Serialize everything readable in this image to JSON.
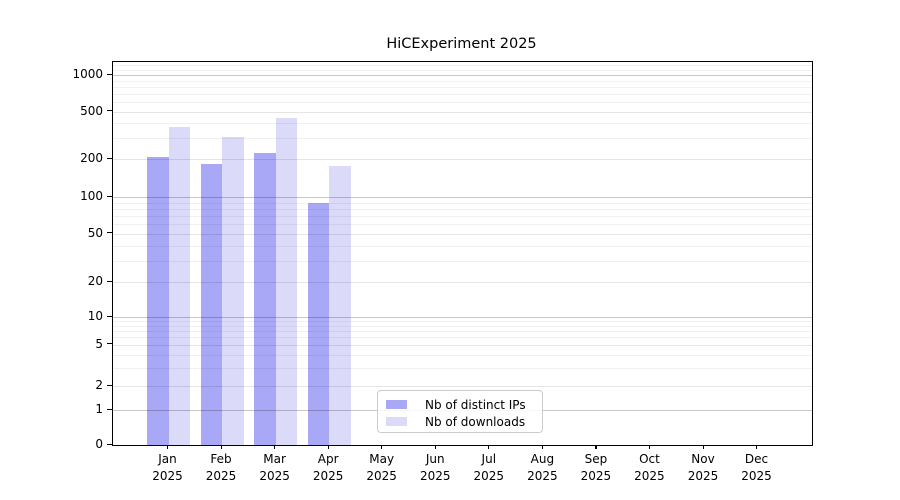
{
  "chart_data": {
    "type": "bar",
    "title": "HiCExperiment 2025",
    "categories": [
      "Jan 2025",
      "Feb 2025",
      "Mar 2025",
      "Apr 2025",
      "May 2025",
      "Jun 2025",
      "Jul 2025",
      "Aug 2025",
      "Sep 2025",
      "Oct 2025",
      "Nov 2025",
      "Dec 2025"
    ],
    "x_tick_month": [
      "Jan",
      "Feb",
      "Mar",
      "Apr",
      "May",
      "Jun",
      "Jul",
      "Aug",
      "Sep",
      "Oct",
      "Nov",
      "Dec"
    ],
    "x_tick_year": "2025",
    "series": [
      {
        "name": "Nb of distinct IPs",
        "color": "#a8a8f6",
        "values": [
          208,
          184,
          226,
          89,
          null,
          null,
          null,
          null,
          null,
          null,
          null,
          null
        ]
      },
      {
        "name": "Nb of downloads",
        "color": "#dbdbf9",
        "values": [
          375,
          305,
          445,
          177,
          null,
          null,
          null,
          null,
          null,
          null,
          null,
          null
        ]
      }
    ],
    "yscale": "symlog",
    "yticks": [
      0,
      1,
      2,
      5,
      10,
      20,
      50,
      100,
      200,
      500,
      1000
    ],
    "ylim": [
      0,
      1270
    ],
    "grid": "both",
    "legend_position": "lower center",
    "background": "#ffffff"
  }
}
